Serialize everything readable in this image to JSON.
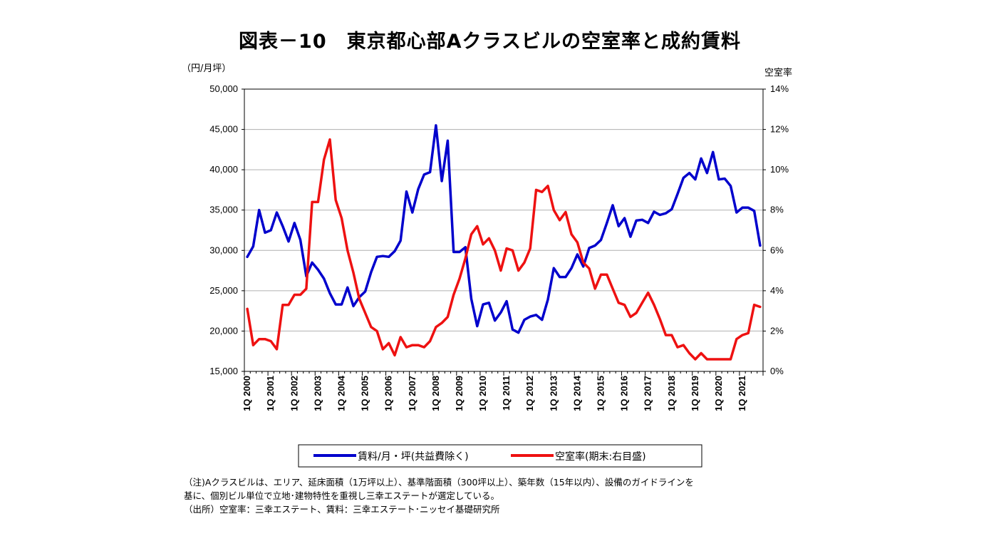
{
  "title": "図表－10　東京都心部Aクラスビルの空室率と成約賃料",
  "notes": {
    "line1": "（注)Aクラスビルは、エリア、延床面積（1万坪以上）、基準階面積（300坪以上）、築年数（15年以内）、設備のガイドラインを",
    "line2": "基に、個別ビル単位で立地･建物特性を重視し三幸エステートが選定している。",
    "line3": "（出所）空室率：三幸エステート、賃料：三幸エステート･ニッセイ基礎研究所"
  },
  "chart_data": {
    "type": "line",
    "title": "図表－10　東京都心部Aクラスビルの空室率と成約賃料",
    "y_left_label": "（円/月坪）",
    "y_right_label": "空室率",
    "y_left_ylim": [
      15000,
      50000
    ],
    "y_left_ticks": [
      "15,000",
      "20,000",
      "25,000",
      "30,000",
      "35,000",
      "40,000",
      "45,000",
      "50,000"
    ],
    "y_right_ylim": [
      0,
      14
    ],
    "y_right_ticks": [
      "0%",
      "2%",
      "4%",
      "6%",
      "8%",
      "10%",
      "12%",
      "14%"
    ],
    "x_tick_labels": [
      "1Q 2000",
      "1Q 2001",
      "1Q 2002",
      "1Q 2003",
      "1Q 2004",
      "1Q 2005",
      "1Q 2006",
      "1Q 2007",
      "1Q 2008",
      "1Q 2009",
      "1Q 2010",
      "1Q 2011",
      "1Q 2012",
      "1Q 2013",
      "1Q 2014",
      "1Q 2015",
      "1Q 2016",
      "1Q 2017",
      "1Q 2018",
      "1Q 2019",
      "1Q 2020",
      "1Q 2021"
    ],
    "n_quarters": 88,
    "legend_position": "bottom",
    "grid": true,
    "series": [
      {
        "name": "賃料/月・坪(共益費除く)",
        "axis": "left",
        "color": "#0000CC",
        "values": [
          29200,
          30500,
          35000,
          32200,
          32500,
          34700,
          33000,
          31100,
          33400,
          31300,
          26800,
          28500,
          27600,
          26500,
          24700,
          23300,
          23300,
          25400,
          23100,
          24200,
          24900,
          27300,
          29200,
          29300,
          29200,
          29900,
          31200,
          37300,
          34700,
          37600,
          39400,
          39700,
          45500,
          38600,
          43600,
          29800,
          29800,
          30400,
          24000,
          20600,
          23300,
          23500,
          21300,
          22300,
          23700,
          20200,
          19800,
          21400,
          21800,
          22000,
          21400,
          23900,
          27800,
          26700,
          26700,
          27800,
          29500,
          28000,
          30300,
          30600,
          31300,
          33400,
          35600,
          33000,
          34000,
          31700,
          33700,
          33800,
          33400,
          34800,
          34400,
          34600,
          35100,
          37000,
          39000,
          39600,
          38800,
          41400,
          39600,
          42200,
          38800,
          38900,
          38000,
          34700,
          35300,
          35300,
          34900,
          30600
        ]
      },
      {
        "name": "空室率(期末:右目盛)",
        "axis": "right",
        "color": "#EE1111",
        "values": [
          3.1,
          1.3,
          1.6,
          1.6,
          1.5,
          1.1,
          3.3,
          3.3,
          3.8,
          3.8,
          4.1,
          8.4,
          8.4,
          10.5,
          11.5,
          8.5,
          7.6,
          6.0,
          4.9,
          3.6,
          2.9,
          2.2,
          2.0,
          1.1,
          1.4,
          0.8,
          1.7,
          1.2,
          1.3,
          1.3,
          1.2,
          1.5,
          2.2,
          2.4,
          2.7,
          3.8,
          4.6,
          5.6,
          6.8,
          7.2,
          6.3,
          6.6,
          6.0,
          5.0,
          6.1,
          6.0,
          5.0,
          5.4,
          6.1,
          9.0,
          8.9,
          9.2,
          8.0,
          7.5,
          7.9,
          6.8,
          6.4,
          5.4,
          5.1,
          4.1,
          4.8,
          4.8,
          4.1,
          3.4,
          3.3,
          2.7,
          2.9,
          3.4,
          3.9,
          3.3,
          2.6,
          1.8,
          1.8,
          1.2,
          1.3,
          0.9,
          0.6,
          0.9,
          0.6,
          0.6,
          0.6,
          0.6,
          0.6,
          1.6,
          1.8,
          1.9,
          3.3,
          3.2
        ]
      }
    ]
  }
}
